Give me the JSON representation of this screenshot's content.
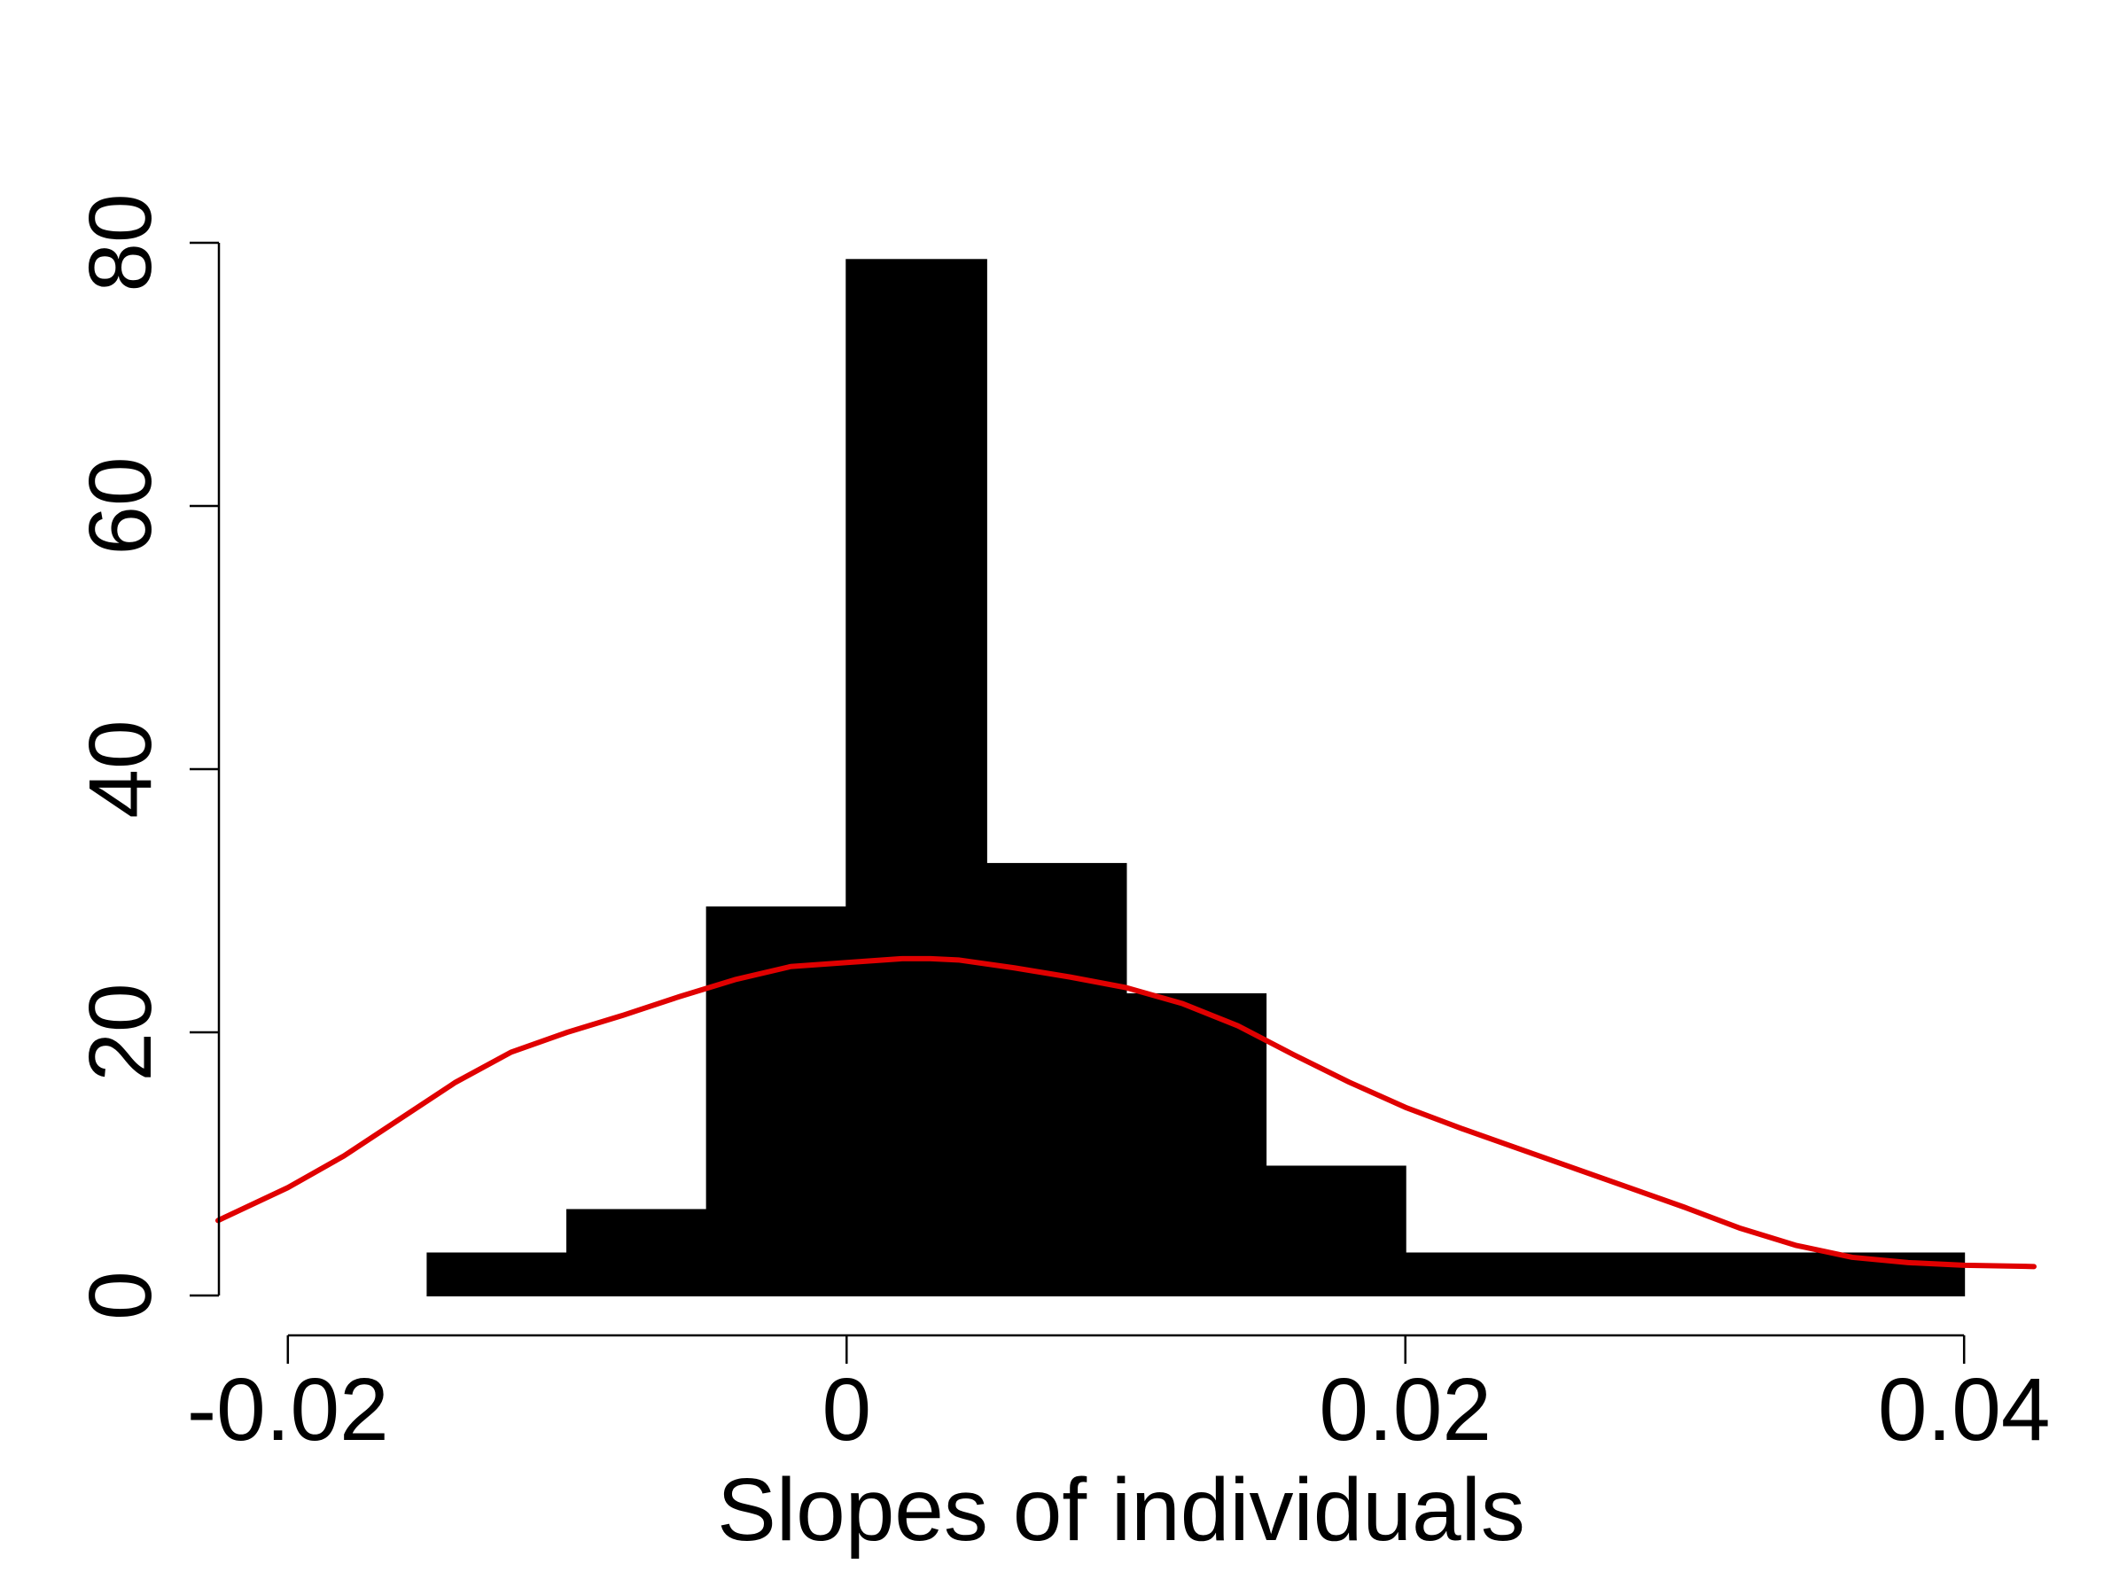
{
  "chart_data": {
    "type": "bar",
    "subtype": "histogram-with-density-curve",
    "title": "",
    "xlabel": "Slopes of individuals",
    "ylabel": "",
    "xlim": [
      -0.0225,
      0.0425
    ],
    "ylim": [
      0,
      80
    ],
    "x_ticks": [
      {
        "value": -0.02,
        "label": "-0.02"
      },
      {
        "value": 0,
        "label": "0"
      },
      {
        "value": 0.02,
        "label": "0.02"
      },
      {
        "value": 0.04,
        "label": "0.04"
      }
    ],
    "y_ticks": [
      {
        "value": 0,
        "label": "0"
      },
      {
        "value": 20,
        "label": "20"
      },
      {
        "value": 40,
        "label": "40"
      },
      {
        "value": 60,
        "label": "60"
      },
      {
        "value": 80,
        "label": "80"
      }
    ],
    "bins": [
      {
        "start": -0.015,
        "end": -0.01,
        "count": 3.2
      },
      {
        "start": -0.01,
        "end": -0.005,
        "count": 6.5
      },
      {
        "start": -0.005,
        "end": 0.0,
        "count": 29.5
      },
      {
        "start": 0.0,
        "end": 0.005,
        "count": 78.7
      },
      {
        "start": 0.005,
        "end": 0.01,
        "count": 32.8
      },
      {
        "start": 0.01,
        "end": 0.015,
        "count": 22.9
      },
      {
        "start": 0.015,
        "end": 0.02,
        "count": 9.8
      },
      {
        "start": 0.02,
        "end": 0.04,
        "count": 3.2
      }
    ],
    "series": [
      {
        "kind": "density-curve",
        "color": "#e00000",
        "x": [
          -0.0225,
          -0.02,
          -0.018,
          -0.016,
          -0.014,
          -0.012,
          -0.01,
          -0.008,
          -0.006,
          -0.004,
          -0.002,
          0.0,
          0.002,
          0.003,
          0.004,
          0.006,
          0.008,
          0.01,
          0.012,
          0.014,
          0.016,
          0.018,
          0.02,
          0.022,
          0.024,
          0.026,
          0.028,
          0.03,
          0.032,
          0.034,
          0.036,
          0.038,
          0.04,
          0.0425
        ],
        "y": [
          5.7,
          8.2,
          10.6,
          13.4,
          16.2,
          18.5,
          20.0,
          21.3,
          22.7,
          24.0,
          25.0,
          25.3,
          25.6,
          25.6,
          25.5,
          24.9,
          24.2,
          23.4,
          22.2,
          20.5,
          18.3,
          16.2,
          14.3,
          12.7,
          11.2,
          9.7,
          8.2,
          6.7,
          5.1,
          3.8,
          2.9,
          2.5,
          2.3,
          2.2
        ]
      }
    ],
    "colors": {
      "bars": "#000000",
      "curve": "#e00000",
      "axes": "#000000"
    },
    "grid": false,
    "legend": "none"
  }
}
